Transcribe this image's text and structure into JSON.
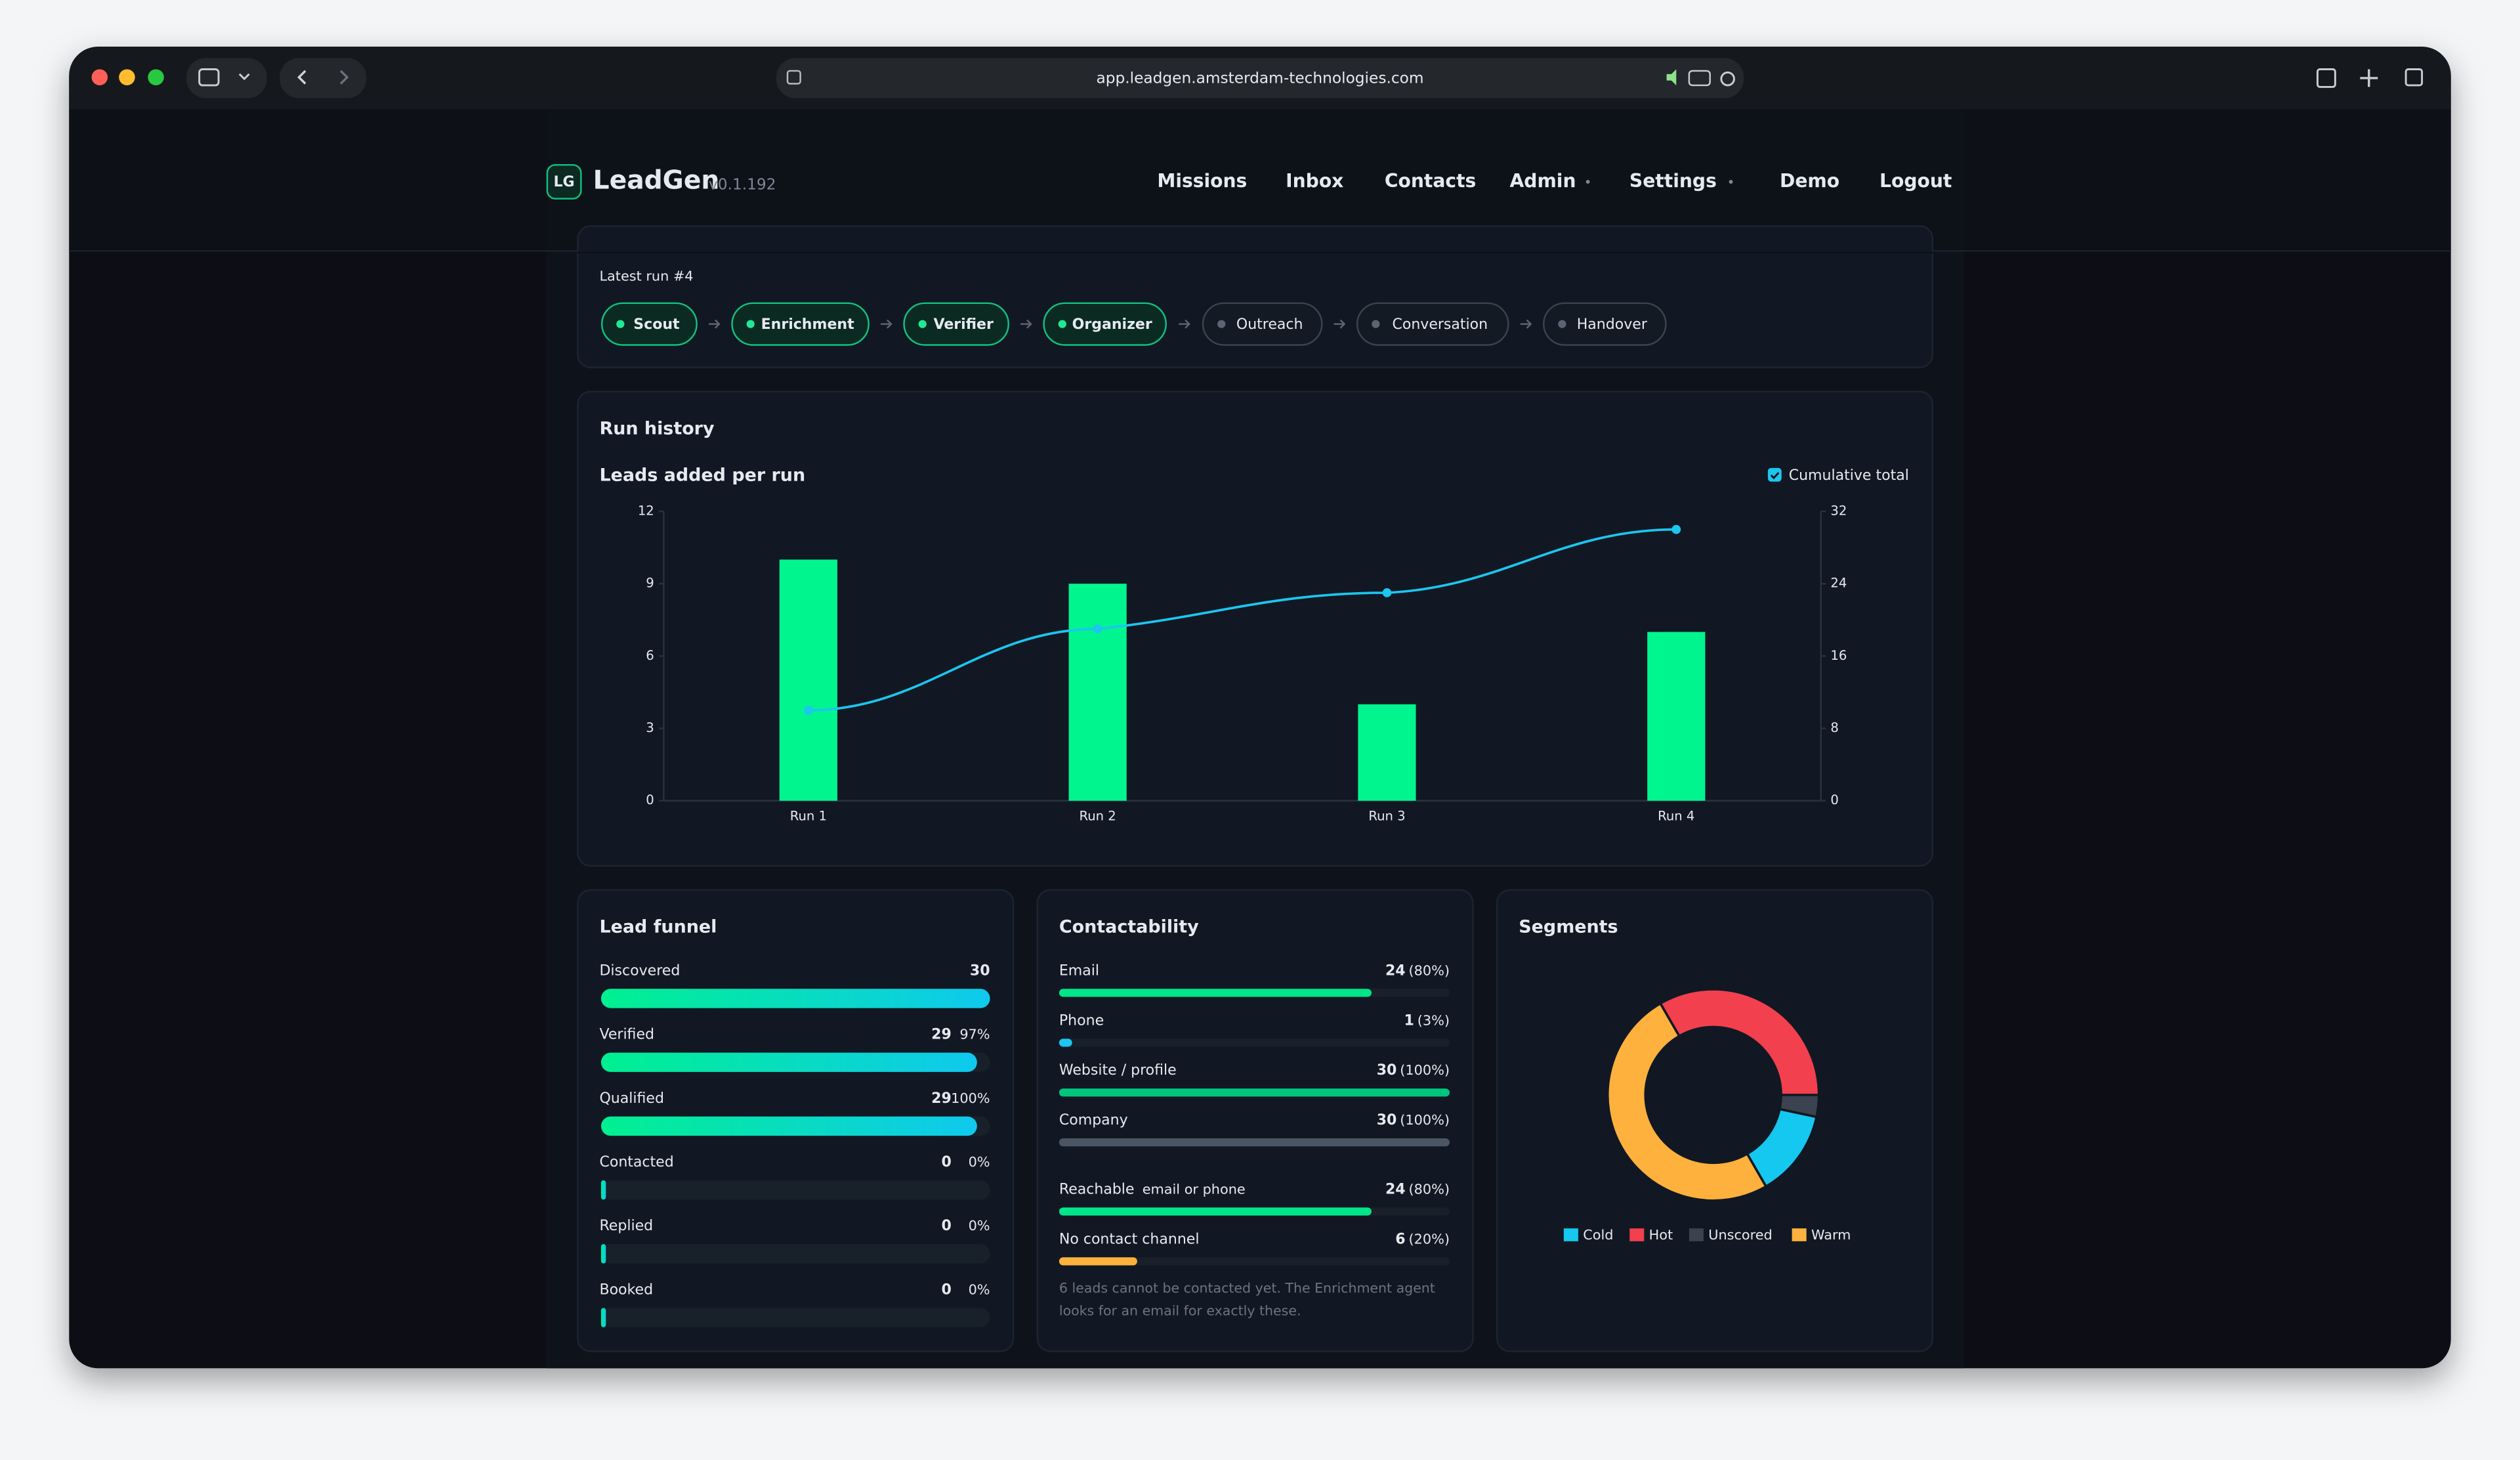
{
  "browser": {
    "url": "app.leadgen.amsterdam-technologies.com"
  },
  "nav": {
    "logo": "LG",
    "brand": "LeadGen",
    "version": "v0.1.192",
    "links": [
      {
        "label": "Missions"
      },
      {
        "label": "Inbox"
      },
      {
        "label": "Contacts"
      },
      {
        "label": "Admin",
        "dropdown": true
      },
      {
        "label": "Settings",
        "dropdown": true
      },
      {
        "label": "Demo"
      },
      {
        "label": "Logout"
      }
    ]
  },
  "pipeline": {
    "label": "Latest run #4",
    "steps": [
      {
        "name": "Scout",
        "active": true
      },
      {
        "name": "Enrichment",
        "active": true
      },
      {
        "name": "Verifier",
        "active": true
      },
      {
        "name": "Organizer",
        "active": true
      },
      {
        "name": "Outreach",
        "active": false
      },
      {
        "name": "Conversation",
        "active": false
      },
      {
        "name": "Handover",
        "active": false
      }
    ]
  },
  "run_history": {
    "title": "Run history",
    "chart_data": {
      "type": "bar",
      "title": "Leads added per run",
      "categories": [
        "Run 1",
        "Run 2",
        "Run 3",
        "Run 4"
      ],
      "values": [
        10,
        9,
        4,
        7
      ],
      "color": "#00f58f",
      "series": [
        {
          "name": "Cumulative total",
          "type": "line",
          "axis": "y2",
          "color": "#1cc6ef",
          "values": [
            10,
            19,
            23,
            30
          ]
        }
      ],
      "ylim": [
        0,
        12
      ],
      "yticks": [
        0,
        3,
        6,
        9,
        12
      ],
      "y2lim": [
        0,
        32
      ],
      "y2ticks": [
        0,
        8,
        16,
        24,
        32
      ],
      "grid": false,
      "legend": "top-right"
    }
  },
  "funnel": {
    "title": "Lead funnel",
    "rows": [
      {
        "label": "Discovered",
        "value": 30
      },
      {
        "label": "Verified",
        "value": 29,
        "percent": "97%"
      },
      {
        "label": "Qualified",
        "value": 29,
        "percent": "100%"
      },
      {
        "label": "Contacted",
        "value": 0,
        "percent": "0%"
      },
      {
        "label": "Replied",
        "value": 0,
        "percent": "0%"
      },
      {
        "label": "Booked",
        "value": 0,
        "percent": "0%"
      }
    ]
  },
  "contactability": {
    "title": "Contactability",
    "rows": [
      {
        "label": "Email",
        "value": 24,
        "percent": "(80%)",
        "color": "#00e58a"
      },
      {
        "label": "Phone",
        "value": 1,
        "percent": "(3%)",
        "color": "#1cc6ef"
      },
      {
        "label": "Website / profile",
        "value": 30,
        "percent": "(100%)",
        "color": "#00c57c"
      },
      {
        "label": "Company",
        "value": 30,
        "percent": "(100%)",
        "color": "#4b5564"
      },
      {
        "label": "Reachable",
        "hint": "email or phone",
        "value": 24,
        "percent": "(80%)",
        "color": "#00e58a"
      },
      {
        "label": "No contact channel",
        "value": 6,
        "percent": "(20%)",
        "color": "#ffb13d"
      }
    ],
    "note": "6 leads cannot be contacted yet. The Enrichment agent looks for an email for exactly these."
  },
  "segments": {
    "title": "Segments",
    "chart_data": {
      "type": "donut",
      "categories": [
        "Cold",
        "Hot",
        "Unscored",
        "Warm"
      ],
      "values": [
        4,
        10,
        1,
        15
      ],
      "colors": [
        "#14c8f0",
        "#f2404f",
        "#3b4350",
        "#ffb13d"
      ]
    }
  }
}
